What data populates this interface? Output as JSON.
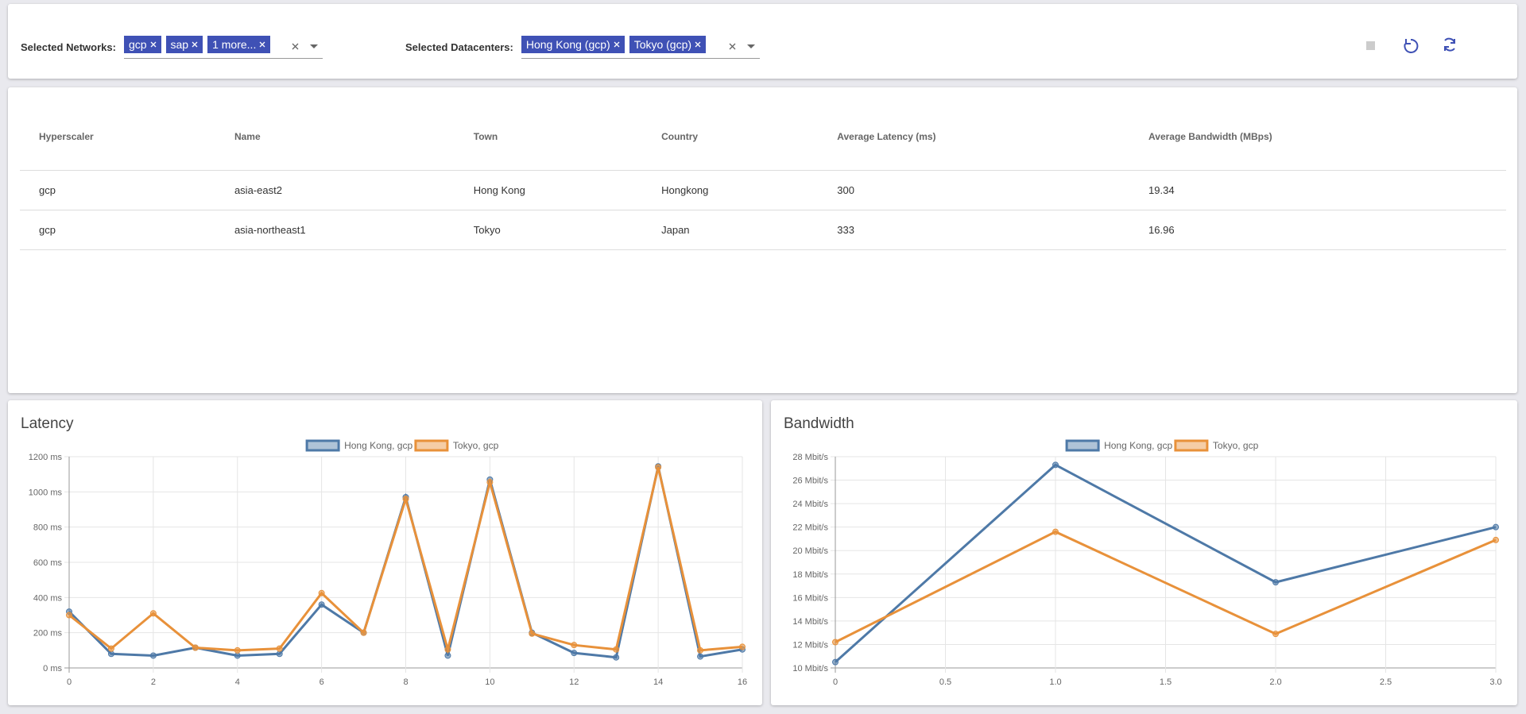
{
  "filters": {
    "networks": {
      "label": "Selected Networks:",
      "chips": [
        "gcp",
        "sap",
        "1 more..."
      ]
    },
    "datacenters": {
      "label": "Selected Datacenters:",
      "chips": [
        "Hong Kong (gcp)",
        "Tokyo (gcp)"
      ]
    }
  },
  "table": {
    "headers": [
      "Hyperscaler",
      "Name",
      "Town",
      "Country",
      "Average Latency (ms)",
      "Average Bandwidth (MBps)"
    ],
    "rows": [
      [
        "gcp",
        "asia-east2",
        "Hong Kong",
        "Hongkong",
        300,
        19.34
      ],
      [
        "gcp",
        "asia-northeast1",
        "Tokyo",
        "Japan",
        333,
        16.96
      ]
    ]
  },
  "chart_data": [
    {
      "type": "line",
      "title": "Latency",
      "x": [
        0,
        1,
        2,
        3,
        4,
        5,
        6,
        7,
        8,
        9,
        10,
        11,
        12,
        13,
        14,
        15,
        16
      ],
      "xlim": [
        0,
        16
      ],
      "xticks": [
        0,
        2,
        4,
        6,
        8,
        10,
        12,
        14,
        16
      ],
      "ylim": [
        0,
        1200
      ],
      "yticks": [
        {
          "value": 0,
          "label": "0 ms"
        },
        {
          "value": 200,
          "label": "200 ms"
        },
        {
          "value": 400,
          "label": "400 ms"
        },
        {
          "value": 600,
          "label": "600 ms"
        },
        {
          "value": 800,
          "label": "800 ms"
        },
        {
          "value": 1000,
          "label": "1000 ms"
        },
        {
          "value": 1200,
          "label": "1200 ms"
        }
      ],
      "grid": true,
      "legend": "top",
      "series": [
        {
          "name": "Hong Kong, gcp",
          "color": "#4e79a7",
          "values": [
            320,
            80,
            70,
            115,
            70,
            80,
            360,
            200,
            970,
            70,
            1070,
            200,
            85,
            60,
            1145,
            65,
            105
          ]
        },
        {
          "name": "Tokyo, gcp",
          "color": "#e8913a",
          "values": [
            300,
            110,
            310,
            115,
            100,
            110,
            425,
            200,
            960,
            105,
            1055,
            195,
            130,
            105,
            1140,
            100,
            120
          ]
        }
      ]
    },
    {
      "type": "line",
      "title": "Bandwidth",
      "x": [
        0,
        1,
        2,
        3
      ],
      "xlim": [
        0,
        3
      ],
      "xticks": [
        0,
        0.5,
        {
          "value": 1,
          "label": "1.0"
        },
        1.5,
        {
          "value": 2,
          "label": "2.0"
        },
        2.5,
        {
          "value": 3,
          "label": "3.0"
        }
      ],
      "ylim": [
        10,
        28
      ],
      "yticks": [
        {
          "value": 10,
          "label": "10 Mbit/s"
        },
        {
          "value": 12,
          "label": "12 Mbit/s"
        },
        {
          "value": 14,
          "label": "14 Mbit/s"
        },
        {
          "value": 16,
          "label": "16 Mbit/s"
        },
        {
          "value": 18,
          "label": "18 Mbit/s"
        },
        {
          "value": 20,
          "label": "20 Mbit/s"
        },
        {
          "value": 22,
          "label": "22 Mbit/s"
        },
        {
          "value": 24,
          "label": "24 Mbit/s"
        },
        {
          "value": 26,
          "label": "26 Mbit/s"
        },
        {
          "value": 28,
          "label": "28 Mbit/s"
        }
      ],
      "grid": true,
      "legend": "top",
      "series": [
        {
          "name": "Hong Kong, gcp",
          "color": "#4e79a7",
          "values": [
            10.5,
            27.3,
            17.3,
            22.0
          ]
        },
        {
          "name": "Tokyo, gcp",
          "color": "#e8913a",
          "values": [
            12.2,
            21.6,
            12.9,
            20.9
          ]
        }
      ]
    }
  ]
}
